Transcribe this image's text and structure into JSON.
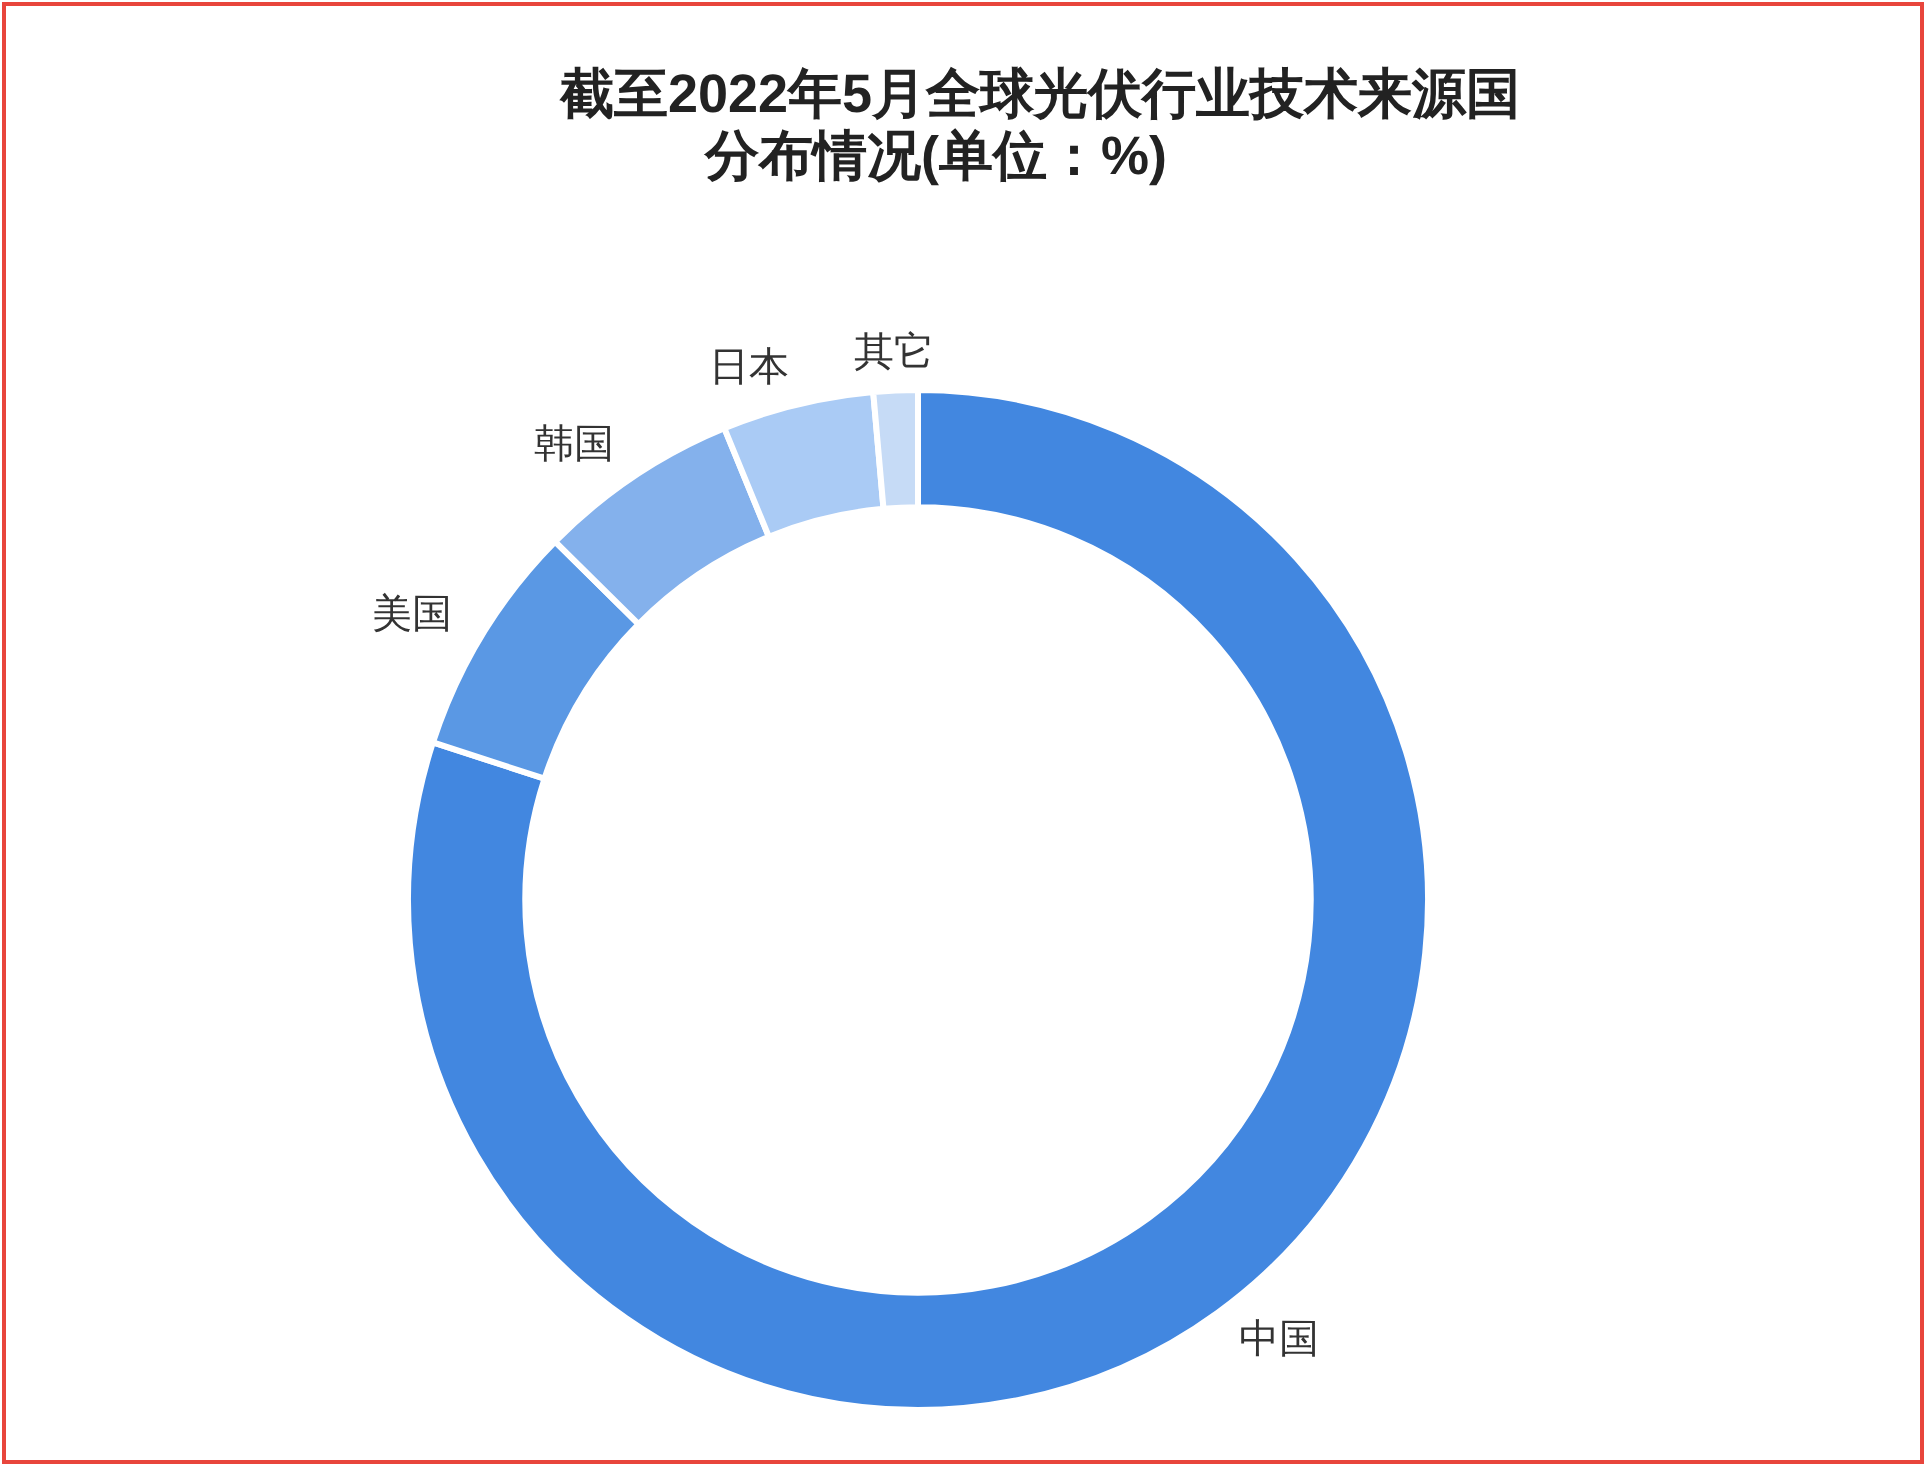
{
  "chart_data": {
    "type": "donut",
    "title": "截至2022年5月全球光伏行业技术来源国分布情况(单位：%)",
    "categories": [
      "中国",
      "美国",
      "韩国",
      "日本",
      "其它"
    ],
    "values": [
      80.0,
      7.4,
      6.4,
      4.8,
      1.4
    ],
    "colors": [
      "#4287e0",
      "#5a98e4",
      "#84b1ec",
      "#aacbf5",
      "#c6dbf6"
    ]
  }
}
